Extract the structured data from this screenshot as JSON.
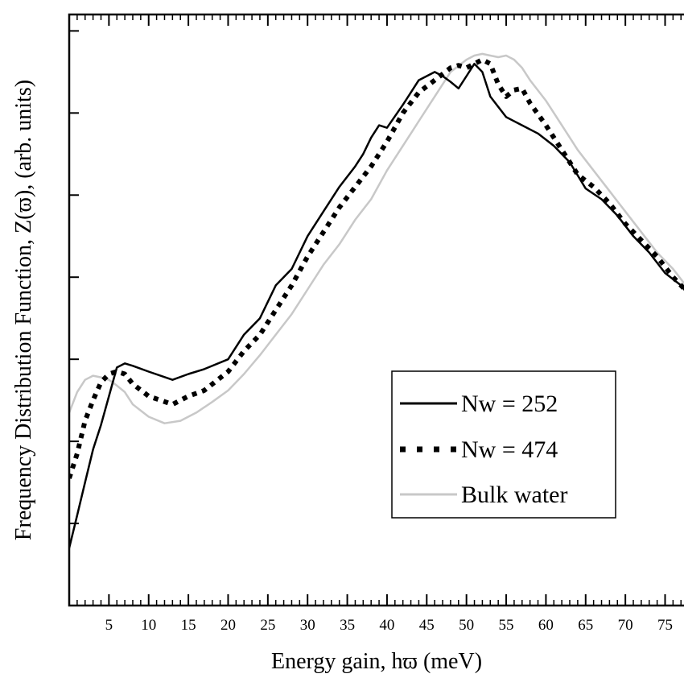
{
  "chart_data": {
    "type": "line",
    "title": "",
    "xlabel": "Energy gain, hϖ (meV)",
    "ylabel": "Frequency Distribution Function,   Z(ϖ), (arb. units)",
    "xlim": [
      0,
      79
    ],
    "ylim": [
      0,
      7.2
    ],
    "x_ticks": [
      5,
      10,
      15,
      20,
      25,
      30,
      35,
      40,
      45,
      50,
      55,
      60,
      65,
      70,
      75
    ],
    "x_tick_labels": [
      "5",
      "10",
      "15",
      "20",
      "25",
      "30",
      "35",
      "40",
      "45",
      "50",
      "55",
      "60",
      "65",
      "70",
      "75"
    ],
    "y_ticks": [
      1,
      2,
      3,
      4,
      5,
      6,
      7
    ],
    "y_tick_labels": [
      "",
      "",
      "",
      "",
      "",
      "",
      ""
    ],
    "grid": false,
    "legend": {
      "position": "center-right"
    },
    "series": [
      {
        "name": "Nw = 252",
        "style": "solid",
        "color": "#000000",
        "x": [
          0,
          1,
          2,
          3,
          4,
          5,
          6,
          7,
          8,
          10,
          13,
          15,
          17,
          20,
          22,
          24,
          26,
          28,
          30,
          32,
          34,
          36,
          37,
          38,
          39,
          40,
          42,
          44,
          46,
          47,
          48,
          49,
          50,
          51,
          52,
          53,
          55,
          57,
          59,
          61,
          63,
          65,
          67,
          69,
          71,
          73,
          75,
          77,
          79
        ],
        "y": [
          0.7,
          1.1,
          1.5,
          1.9,
          2.2,
          2.55,
          2.9,
          2.95,
          2.92,
          2.85,
          2.75,
          2.82,
          2.88,
          3.0,
          3.3,
          3.5,
          3.9,
          4.1,
          4.5,
          4.8,
          5.1,
          5.35,
          5.5,
          5.7,
          5.85,
          5.82,
          6.1,
          6.4,
          6.5,
          6.45,
          6.38,
          6.3,
          6.45,
          6.6,
          6.5,
          6.2,
          5.95,
          5.85,
          5.75,
          5.6,
          5.4,
          5.08,
          4.95,
          4.75,
          4.5,
          4.3,
          4.05,
          3.9,
          3.65
        ]
      },
      {
        "name": "Nw = 474",
        "style": "dotted",
        "color": "#000000",
        "x": [
          0,
          1,
          2,
          3,
          4,
          5,
          6,
          7,
          8,
          10,
          13,
          15,
          17,
          20,
          22,
          24,
          26,
          28,
          30,
          32,
          34,
          36,
          38,
          40,
          42,
          44,
          46,
          48,
          49,
          50,
          51,
          52,
          53,
          54,
          55,
          56,
          57,
          58,
          60,
          62,
          64,
          66,
          68,
          70,
          72,
          74,
          76,
          78,
          79
        ],
        "y": [
          1.55,
          1.85,
          2.25,
          2.5,
          2.72,
          2.82,
          2.85,
          2.82,
          2.7,
          2.55,
          2.45,
          2.55,
          2.62,
          2.85,
          3.1,
          3.3,
          3.6,
          3.9,
          4.25,
          4.55,
          4.85,
          5.1,
          5.35,
          5.65,
          6.0,
          6.25,
          6.4,
          6.55,
          6.58,
          6.55,
          6.6,
          6.65,
          6.6,
          6.35,
          6.2,
          6.28,
          6.3,
          6.12,
          5.85,
          5.55,
          5.25,
          5.1,
          4.9,
          4.65,
          4.45,
          4.25,
          4.0,
          3.8,
          3.7
        ]
      },
      {
        "name": "Bulk water",
        "style": "solid",
        "color": "#c8c8c8",
        "x": [
          0,
          1,
          2,
          3,
          4,
          5,
          6,
          7,
          8,
          10,
          12,
          14,
          16,
          18,
          20,
          22,
          24,
          26,
          28,
          30,
          32,
          34,
          36,
          38,
          40,
          42,
          44,
          46,
          48,
          50,
          51,
          52,
          53,
          54,
          55,
          56,
          57,
          58,
          60,
          62,
          64,
          66,
          68,
          70,
          72,
          74,
          76,
          78,
          79
        ],
        "y": [
          2.35,
          2.6,
          2.75,
          2.8,
          2.78,
          2.75,
          2.68,
          2.6,
          2.45,
          2.3,
          2.22,
          2.25,
          2.35,
          2.48,
          2.62,
          2.82,
          3.05,
          3.3,
          3.55,
          3.85,
          4.15,
          4.4,
          4.7,
          4.95,
          5.3,
          5.6,
          5.9,
          6.2,
          6.5,
          6.65,
          6.7,
          6.72,
          6.7,
          6.68,
          6.7,
          6.65,
          6.55,
          6.4,
          6.15,
          5.85,
          5.55,
          5.3,
          5.05,
          4.8,
          4.55,
          4.3,
          4.1,
          3.85,
          3.75
        ]
      }
    ]
  }
}
